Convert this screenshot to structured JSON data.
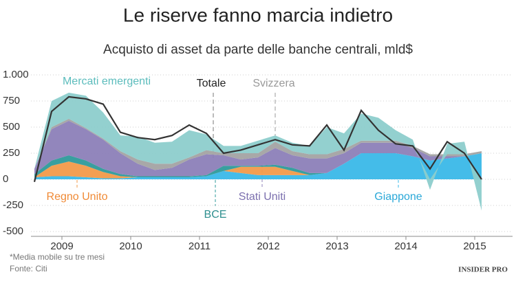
{
  "chart_data": {
    "type": "area",
    "stacked": true,
    "title": "Le riserve fanno marcia indietro",
    "subtitle": "Acquisto di asset da parte delle banche centrali, mld$",
    "x": [
      2008.6,
      2008.85,
      2009.1,
      2009.35,
      2009.6,
      2009.85,
      2010.1,
      2010.35,
      2010.6,
      2010.85,
      2011.1,
      2011.35,
      2011.6,
      2011.85,
      2012.1,
      2012.35,
      2012.6,
      2012.85,
      2013.1,
      2013.35,
      2013.6,
      2013.85,
      2014.1,
      2014.35,
      2014.6,
      2014.85,
      2015.1
    ],
    "xlim": [
      2008.55,
      2015.5
    ],
    "xticks": [
      2009,
      2010,
      2011,
      2012,
      2013,
      2014,
      2015
    ],
    "ylim": [
      -500,
      1000
    ],
    "yticks": [
      {
        "value": 1000,
        "label": "1.000"
      },
      750,
      500,
      250,
      0,
      -250,
      -500
    ],
    "series": [
      {
        "name": "Giappone",
        "color": "#3ab8e8",
        "values": [
          20,
          30,
          30,
          20,
          10,
          10,
          20,
          20,
          20,
          20,
          30,
          80,
          60,
          40,
          40,
          40,
          40,
          60,
          150,
          250,
          250,
          250,
          220,
          180,
          200,
          220,
          250
        ]
      },
      {
        "name": "Regno Unito",
        "color": "#f29a4a",
        "values": [
          0,
          100,
          140,
          110,
          60,
          20,
          0,
          0,
          0,
          0,
          0,
          0,
          60,
          80,
          80,
          40,
          0,
          0,
          0,
          0,
          0,
          0,
          0,
          0,
          0,
          0,
          0
        ]
      },
      {
        "name": "BCE",
        "color": "#2e9a9a",
        "values": [
          30,
          50,
          60,
          50,
          30,
          20,
          10,
          10,
          10,
          10,
          10,
          50,
          10,
          10,
          20,
          30,
          20,
          0,
          0,
          0,
          0,
          0,
          0,
          0,
          0,
          0,
          0
        ]
      },
      {
        "name": "Stati Uniti",
        "color": "#8c80b8",
        "values": [
          50,
          300,
          330,
          300,
          280,
          200,
          120,
          60,
          80,
          160,
          200,
          100,
          60,
          80,
          160,
          120,
          140,
          140,
          100,
          100,
          100,
          100,
          80,
          40,
          20,
          0,
          0
        ]
      },
      {
        "name": "Svizzera",
        "color": "#a3a3a3",
        "values": [
          0,
          20,
          20,
          10,
          10,
          20,
          40,
          60,
          40,
          20,
          40,
          20,
          60,
          40,
          60,
          40,
          40,
          40,
          40,
          20,
          20,
          20,
          20,
          20,
          20,
          20,
          20
        ]
      },
      {
        "name": "Mercati emergenti",
        "color": "#8dcdcc",
        "values": [
          0,
          250,
          250,
          310,
          250,
          150,
          220,
          200,
          210,
          260,
          150,
          70,
          70,
          120,
          60,
          80,
          80,
          260,
          150,
          260,
          220,
          100,
          60,
          -100,
          100,
          120,
          -300
        ]
      }
    ],
    "line": {
      "name": "Totale",
      "color": "#333333",
      "values": [
        -25,
        650,
        790,
        770,
        720,
        450,
        400,
        380,
        420,
        520,
        440,
        250,
        280,
        330,
        380,
        330,
        320,
        520,
        280,
        660,
        470,
        340,
        320,
        100,
        360,
        250,
        0
      ]
    },
    "notes": [
      "*Media mobile su tre mesi",
      "Fonte: Citi"
    ],
    "logo": "INSIDER PRO"
  }
}
